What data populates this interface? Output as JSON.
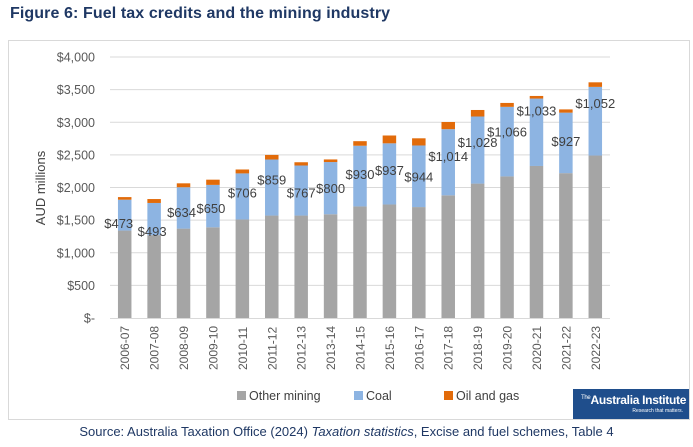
{
  "figure": {
    "title": "Figure 6: Fuel tax credits and the mining industry",
    "source_prefix": "Source: Australia Taxation Office (2024) ",
    "source_italic": "Taxation statistics",
    "source_suffix": ", Excise and fuel schemes, Table 4"
  },
  "logo": {
    "prefix": "The",
    "name": "Australia Institute",
    "tagline": "Research that matters."
  },
  "colors": {
    "other_mining": "#a5a5a5",
    "coal": "#8db4e2",
    "oil_and_gas": "#e26b0a",
    "gridline": "#d9d9d9",
    "text": "#404040",
    "title": "#1f3864"
  },
  "chart_data": {
    "type": "bar",
    "stacked": true,
    "title": "",
    "xlabel": "",
    "ylabel": "AUD millions",
    "ylim": [
      0,
      4000
    ],
    "yticks": [
      0,
      500,
      1000,
      1500,
      2000,
      2500,
      3000,
      3500,
      4000
    ],
    "ytick_labels": [
      "$-",
      "$500",
      "$1,000",
      "$1,500",
      "$2,000",
      "$2,500",
      "$3,000",
      "$3,500",
      "$4,000"
    ],
    "grid": true,
    "legend_position": "bottom",
    "categories": [
      "2006-07",
      "2007-08",
      "2008-09",
      "2009-10",
      "2010-11",
      "2011-12",
      "2012-13",
      "2013-14",
      "2014-15",
      "2015-16",
      "2016-17",
      "2017-18",
      "2018-19",
      "2019-20",
      "2020-21",
      "2021-22",
      "2022-23"
    ],
    "series": [
      {
        "name": "Other mining",
        "values": [
          1340,
          1270,
          1370,
          1390,
          1510,
          1570,
          1570,
          1590,
          1710,
          1740,
          1700,
          1880,
          2060,
          2170,
          2330,
          2220,
          2490
        ]
      },
      {
        "name": "Coal",
        "values": [
          473,
          493,
          634,
          650,
          706,
          859,
          767,
          800,
          930,
          937,
          944,
          1014,
          1028,
          1066,
          1033,
          927,
          1052
        ]
      },
      {
        "name": "Oil and gas",
        "values": [
          40,
          60,
          60,
          80,
          60,
          70,
          50,
          40,
          70,
          120,
          110,
          110,
          100,
          60,
          40,
          50,
          70
        ]
      }
    ],
    "data_labels": {
      "series": "Coal",
      "labels": [
        "$473",
        "$493",
        "$634",
        "$650",
        "$706",
        "$859",
        "$767",
        "$800",
        "$930",
        "$937",
        "$944",
        "$1,014",
        "$1,028",
        "$1,066",
        "$1,033",
        "$927",
        "$1,052"
      ]
    }
  }
}
